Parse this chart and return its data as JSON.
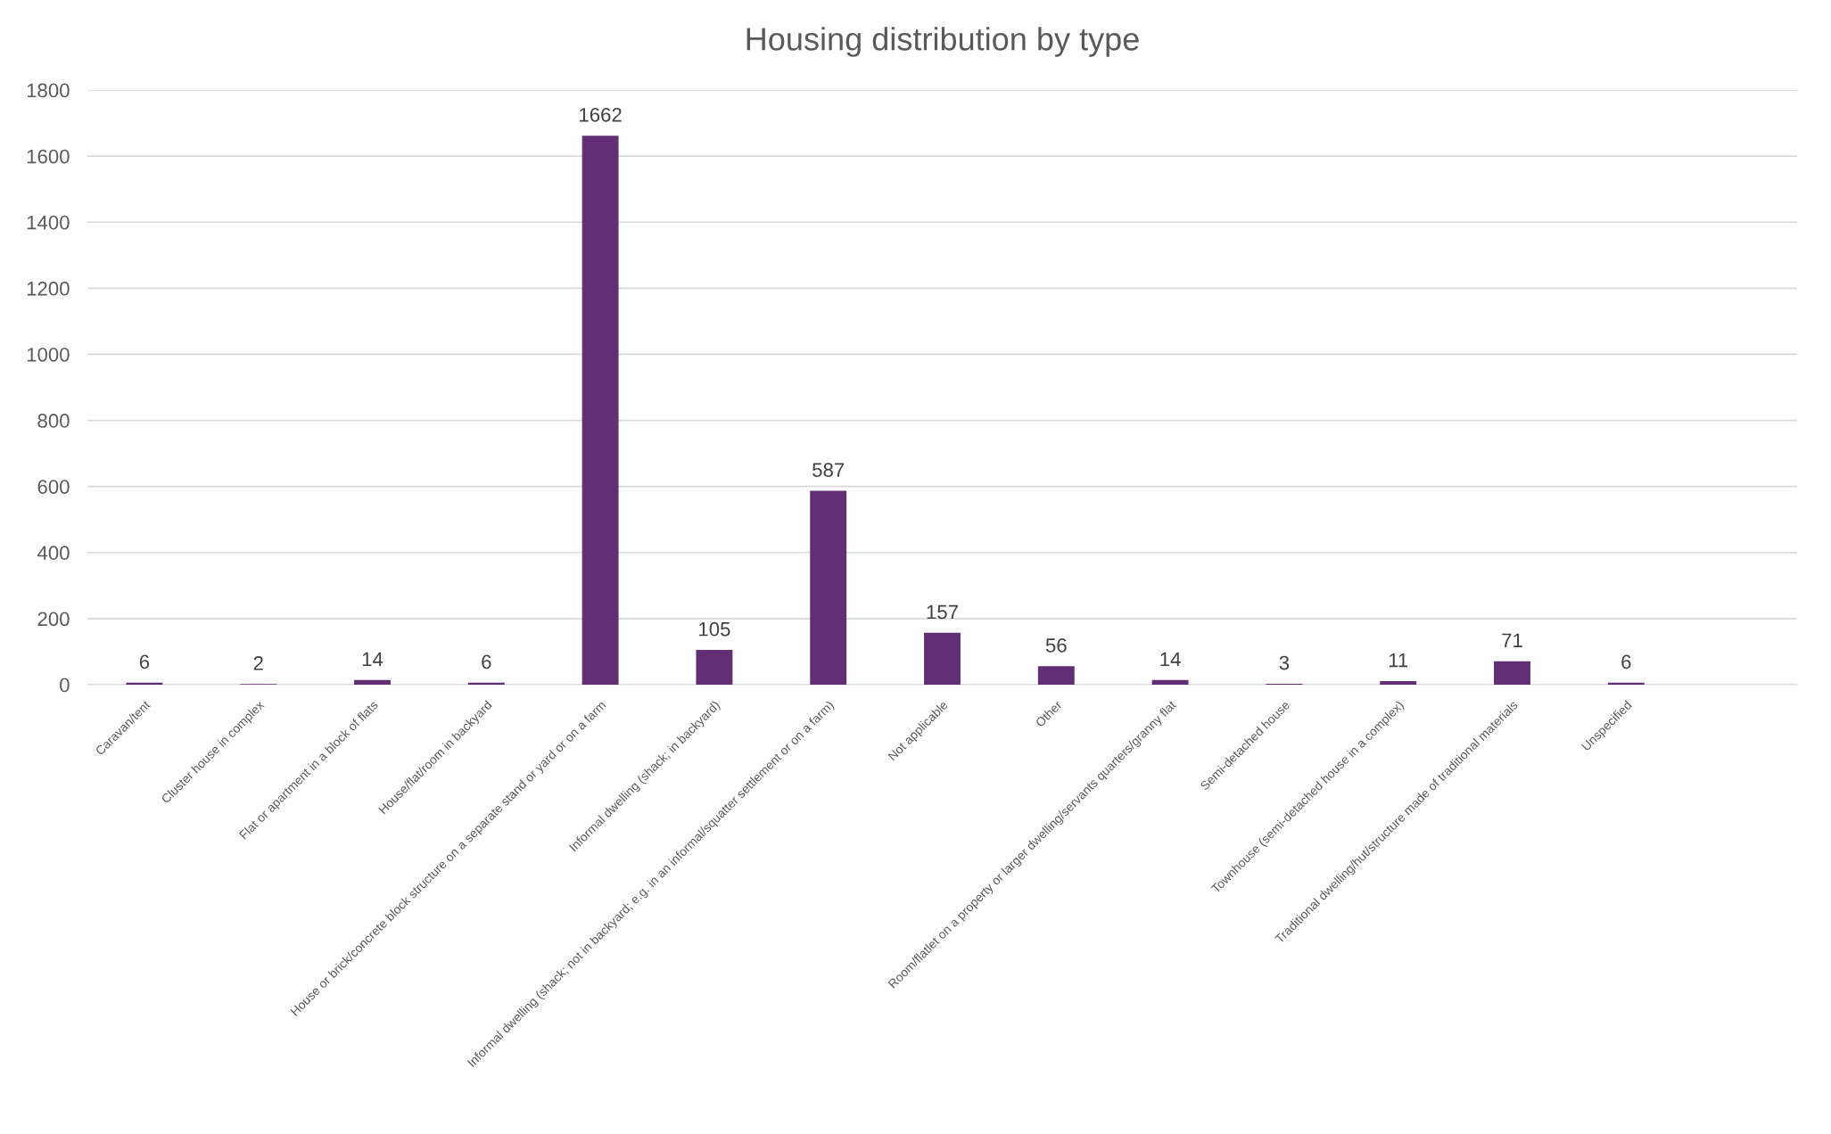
{
  "chart_data": {
    "type": "bar",
    "title": "Housing distribution by type",
    "categories": [
      "Caravan/tent",
      "Cluster house in complex",
      "Flat or apartment in a block of flats",
      "House/flat/room in backyard",
      "House or brick/concrete block structure on a separate stand or yard or on a farm",
      "Informal dwelling (shack; in backyard)",
      "Informal dwelling (shack; not in backyard; e.g. in an informal/squatter settlement or on a farm)",
      "Not applicable",
      "Other",
      "Room/flatlet on a property or larger dwelling/servants quarters/granny flat",
      "Semi-detached house",
      "Townhouse (semi-detached house in a complex)",
      "Traditional dwelling/hut/structure made of traditional materials",
      "Unspecified",
      null
    ],
    "values": [
      6,
      2,
      14,
      6,
      1662,
      105,
      587,
      157,
      56,
      14,
      3,
      11,
      71,
      6,
      null
    ],
    "color": "#622e74",
    "ylim": [
      0,
      1800
    ],
    "yticks": [
      0,
      200,
      400,
      600,
      800,
      1000,
      1200,
      1400,
      1600,
      1800
    ],
    "grid": "y",
    "data_labels": true,
    "legend": false
  }
}
